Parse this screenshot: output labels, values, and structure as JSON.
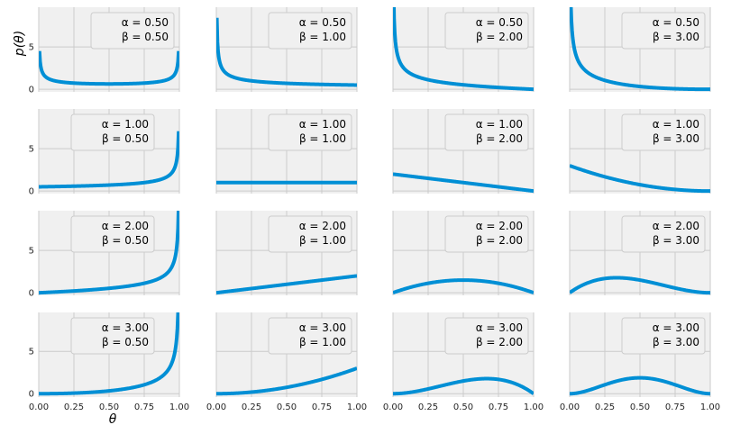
{
  "chart_data": {
    "type": "line",
    "layout": "4x4 grid of beta-distribution density plots, shared axes",
    "xlabel": "θ",
    "ylabel": "p(θ)",
    "xlim": [
      0,
      1
    ],
    "x_ticks": [
      "0.00",
      "0.25",
      "0.50",
      "0.75",
      "1.00"
    ],
    "x_tick_values": [
      0,
      0.25,
      0.5,
      0.75,
      1
    ],
    "row_yticks": [
      {
        "values": [
          0,
          5
        ],
        "labels": [
          "0",
          "5"
        ]
      },
      {
        "values": [
          0,
          5
        ],
        "labels": [
          "0",
          "5"
        ]
      },
      {
        "values": [
          0,
          5
        ],
        "labels": [
          "0",
          "5"
        ]
      },
      {
        "values": [
          0,
          5
        ],
        "labels": [
          "0",
          "5"
        ]
      }
    ],
    "row_ylim": [
      [
        -0.3,
        9.7
      ],
      [
        -0.3,
        9.7
      ],
      [
        -0.3,
        9.7
      ],
      [
        -0.4,
        9.6
      ]
    ],
    "grid": true,
    "line_color": "#008fd5",
    "background_color": "#f0f0f0",
    "panels": [
      {
        "alpha": 0.5,
        "beta": 0.5,
        "legend": [
          "α = 0.50",
          "β = 0.50"
        ],
        "legend_position": "top-right"
      },
      {
        "alpha": 0.5,
        "beta": 1.0,
        "legend": [
          "α = 0.50",
          "β = 1.00"
        ],
        "legend_position": "top-right"
      },
      {
        "alpha": 0.5,
        "beta": 2.0,
        "legend": [
          "α = 0.50",
          "β = 2.00"
        ],
        "legend_position": "top-right"
      },
      {
        "alpha": 0.5,
        "beta": 3.0,
        "legend": [
          "α = 0.50",
          "β = 3.00"
        ],
        "legend_position": "top-right"
      },
      {
        "alpha": 1.0,
        "beta": 0.5,
        "legend": [
          "α = 1.00",
          "β = 0.50"
        ],
        "legend_position": "top-center"
      },
      {
        "alpha": 1.0,
        "beta": 1.0,
        "legend": [
          "α = 1.00",
          "β = 1.00"
        ],
        "legend_position": "top-right"
      },
      {
        "alpha": 1.0,
        "beta": 2.0,
        "legend": [
          "α = 1.00",
          "β = 2.00"
        ],
        "legend_position": "top-right"
      },
      {
        "alpha": 1.0,
        "beta": 3.0,
        "legend": [
          "α = 1.00",
          "β = 3.00"
        ],
        "legend_position": "top-right"
      },
      {
        "alpha": 2.0,
        "beta": 0.5,
        "legend": [
          "α = 2.00",
          "β = 0.50"
        ],
        "legend_position": "top-center"
      },
      {
        "alpha": 2.0,
        "beta": 1.0,
        "legend": [
          "α = 2.00",
          "β = 1.00"
        ],
        "legend_position": "top-right"
      },
      {
        "alpha": 2.0,
        "beta": 2.0,
        "legend": [
          "α = 2.00",
          "β = 2.00"
        ],
        "legend_position": "top-right"
      },
      {
        "alpha": 2.0,
        "beta": 3.0,
        "legend": [
          "α = 2.00",
          "β = 3.00"
        ],
        "legend_position": "top-right"
      },
      {
        "alpha": 3.0,
        "beta": 0.5,
        "legend": [
          "α = 3.00",
          "β = 0.50"
        ],
        "legend_position": "top-center"
      },
      {
        "alpha": 3.0,
        "beta": 1.0,
        "legend": [
          "α = 3.00",
          "β = 1.00"
        ],
        "legend_position": "top-right"
      },
      {
        "alpha": 3.0,
        "beta": 2.0,
        "legend": [
          "α = 3.00",
          "β = 2.00"
        ],
        "legend_position": "top-right"
      },
      {
        "alpha": 3.0,
        "beta": 3.0,
        "legend": [
          "α = 3.00",
          "β = 3.00"
        ],
        "legend_position": "top-right"
      }
    ]
  }
}
